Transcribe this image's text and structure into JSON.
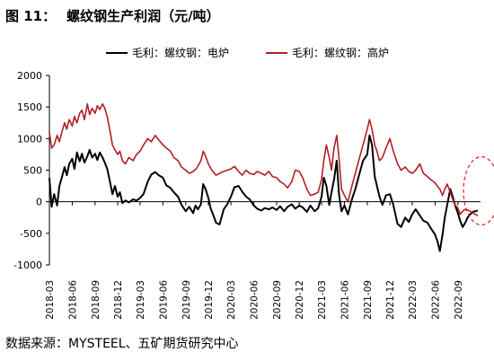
{
  "figure": {
    "number": "图 11：",
    "title": "螺纹钢生产利润（元/吨）",
    "source": "数据来源：MYSTEEL、五矿期货研究中心"
  },
  "chart_data": {
    "type": "line",
    "title": "",
    "xlabel": "",
    "ylabel": "",
    "ylim": [
      -1000,
      2000
    ],
    "yticks": [
      -1000,
      -500,
      0,
      500,
      1000,
      1500,
      2000
    ],
    "xlim": [
      "2018-03",
      "2022-12"
    ],
    "xticks": [
      "2018-03",
      "2018-06",
      "2018-09",
      "2018-12",
      "2019-03",
      "2019-06",
      "2019-09",
      "2019-12",
      "2020-03",
      "2020-06",
      "2020-09",
      "2020-12",
      "2021-03",
      "2021-06",
      "2021-09",
      "2021-12",
      "2022-03",
      "2022-06",
      "2022-09"
    ],
    "legend_position": "top",
    "grid": false,
    "annotation": "red dashed ellipse around latest values",
    "series": [
      {
        "name": "毛利：螺纹钢：电炉",
        "color": "#000000",
        "points": [
          [
            "2018-03-01",
            380
          ],
          [
            "2018-03-10",
            -80
          ],
          [
            "2018-03-20",
            120
          ],
          [
            "2018-04-01",
            -60
          ],
          [
            "2018-04-10",
            250
          ],
          [
            "2018-04-20",
            380
          ],
          [
            "2018-05-01",
            550
          ],
          [
            "2018-05-10",
            420
          ],
          [
            "2018-05-20",
            600
          ],
          [
            "2018-06-01",
            680
          ],
          [
            "2018-06-10",
            520
          ],
          [
            "2018-06-20",
            780
          ],
          [
            "2018-07-01",
            640
          ],
          [
            "2018-07-10",
            760
          ],
          [
            "2018-07-20",
            620
          ],
          [
            "2018-08-01",
            720
          ],
          [
            "2018-08-10",
            820
          ],
          [
            "2018-08-20",
            700
          ],
          [
            "2018-09-01",
            760
          ],
          [
            "2018-09-10",
            660
          ],
          [
            "2018-09-20",
            780
          ],
          [
            "2018-10-01",
            700
          ],
          [
            "2018-10-10",
            620
          ],
          [
            "2018-10-20",
            520
          ],
          [
            "2018-11-01",
            300
          ],
          [
            "2018-11-10",
            120
          ],
          [
            "2018-11-20",
            250
          ],
          [
            "2018-12-01",
            80
          ],
          [
            "2018-12-10",
            150
          ],
          [
            "2018-12-20",
            -20
          ],
          [
            "2019-01-01",
            20
          ],
          [
            "2019-01-15",
            -10
          ],
          [
            "2019-02-01",
            40
          ],
          [
            "2019-02-15",
            20
          ],
          [
            "2019-03-01",
            60
          ],
          [
            "2019-03-15",
            120
          ],
          [
            "2019-04-01",
            320
          ],
          [
            "2019-04-15",
            430
          ],
          [
            "2019-05-01",
            470
          ],
          [
            "2019-05-15",
            420
          ],
          [
            "2019-06-01",
            380
          ],
          [
            "2019-06-15",
            260
          ],
          [
            "2019-07-01",
            220
          ],
          [
            "2019-07-15",
            150
          ],
          [
            "2019-08-01",
            80
          ],
          [
            "2019-08-15",
            -50
          ],
          [
            "2019-09-01",
            -150
          ],
          [
            "2019-09-15",
            -80
          ],
          [
            "2019-10-01",
            -180
          ],
          [
            "2019-10-10",
            -60
          ],
          [
            "2019-10-20",
            -120
          ],
          [
            "2019-11-01",
            -40
          ],
          [
            "2019-11-10",
            280
          ],
          [
            "2019-11-20",
            200
          ],
          [
            "2019-12-01",
            60
          ],
          [
            "2019-12-10",
            -100
          ],
          [
            "2019-12-20",
            -200
          ],
          [
            "2020-01-01",
            -330
          ],
          [
            "2020-01-15",
            -360
          ],
          [
            "2020-02-01",
            -120
          ],
          [
            "2020-02-15",
            -40
          ],
          [
            "2020-03-01",
            80
          ],
          [
            "2020-03-15",
            230
          ],
          [
            "2020-04-01",
            250
          ],
          [
            "2020-04-15",
            160
          ],
          [
            "2020-05-01",
            80
          ],
          [
            "2020-05-15",
            40
          ],
          [
            "2020-06-01",
            -60
          ],
          [
            "2020-06-15",
            -110
          ],
          [
            "2020-07-01",
            -140
          ],
          [
            "2020-07-15",
            -100
          ],
          [
            "2020-08-01",
            -120
          ],
          [
            "2020-08-15",
            -90
          ],
          [
            "2020-09-01",
            -130
          ],
          [
            "2020-09-15",
            -70
          ],
          [
            "2020-10-01",
            -150
          ],
          [
            "2020-10-15",
            -80
          ],
          [
            "2020-11-01",
            -40
          ],
          [
            "2020-11-15",
            -110
          ],
          [
            "2020-12-01",
            -60
          ],
          [
            "2020-12-15",
            -90
          ],
          [
            "2021-01-01",
            -160
          ],
          [
            "2021-01-15",
            -60
          ],
          [
            "2021-02-01",
            -150
          ],
          [
            "2021-02-15",
            -100
          ],
          [
            "2021-03-01",
            80
          ],
          [
            "2021-03-10",
            380
          ],
          [
            "2021-03-20",
            260
          ],
          [
            "2021-04-01",
            -50
          ],
          [
            "2021-04-10",
            150
          ],
          [
            "2021-04-20",
            350
          ],
          [
            "2021-05-01",
            650
          ],
          [
            "2021-05-10",
            120
          ],
          [
            "2021-05-20",
            -150
          ],
          [
            "2021-06-01",
            -60
          ],
          [
            "2021-06-15",
            -200
          ],
          [
            "2021-07-01",
            40
          ],
          [
            "2021-07-15",
            200
          ],
          [
            "2021-08-01",
            450
          ],
          [
            "2021-08-15",
            650
          ],
          [
            "2021-09-01",
            750
          ],
          [
            "2021-09-10",
            1050
          ],
          [
            "2021-09-20",
            900
          ],
          [
            "2021-10-01",
            400
          ],
          [
            "2021-10-10",
            250
          ],
          [
            "2021-10-20",
            80
          ],
          [
            "2021-11-01",
            -50
          ],
          [
            "2021-11-15",
            100
          ],
          [
            "2021-12-01",
            120
          ],
          [
            "2021-12-15",
            -50
          ],
          [
            "2022-01-01",
            -350
          ],
          [
            "2022-01-15",
            -400
          ],
          [
            "2022-02-01",
            -250
          ],
          [
            "2022-02-15",
            -320
          ],
          [
            "2022-03-01",
            -200
          ],
          [
            "2022-03-15",
            -120
          ],
          [
            "2022-04-01",
            -220
          ],
          [
            "2022-04-15",
            -300
          ],
          [
            "2022-05-01",
            -330
          ],
          [
            "2022-05-15",
            -420
          ],
          [
            "2022-06-01",
            -520
          ],
          [
            "2022-06-10",
            -620
          ],
          [
            "2022-06-20",
            -780
          ],
          [
            "2022-07-01",
            -520
          ],
          [
            "2022-07-10",
            -250
          ],
          [
            "2022-07-20",
            -50
          ],
          [
            "2022-08-01",
            200
          ],
          [
            "2022-08-10",
            90
          ],
          [
            "2022-08-20",
            -50
          ],
          [
            "2022-09-01",
            -180
          ],
          [
            "2022-09-10",
            -300
          ],
          [
            "2022-09-20",
            -400
          ],
          [
            "2022-10-01",
            -330
          ],
          [
            "2022-10-10",
            -250
          ],
          [
            "2022-10-20",
            -200
          ],
          [
            "2022-11-01",
            -160
          ],
          [
            "2022-11-10",
            -150
          ],
          [
            "2022-11-20",
            -140
          ]
        ]
      },
      {
        "name": "毛利：螺纹钢：高炉",
        "color": "#b11f24",
        "points": [
          [
            "2018-03-01",
            1100
          ],
          [
            "2018-03-10",
            850
          ],
          [
            "2018-03-20",
            900
          ],
          [
            "2018-04-01",
            1050
          ],
          [
            "2018-04-10",
            950
          ],
          [
            "2018-04-20",
            1100
          ],
          [
            "2018-05-01",
            1250
          ],
          [
            "2018-05-10",
            1150
          ],
          [
            "2018-05-20",
            1300
          ],
          [
            "2018-06-01",
            1200
          ],
          [
            "2018-06-10",
            1350
          ],
          [
            "2018-06-20",
            1250
          ],
          [
            "2018-07-01",
            1400
          ],
          [
            "2018-07-10",
            1450
          ],
          [
            "2018-07-20",
            1300
          ],
          [
            "2018-08-01",
            1550
          ],
          [
            "2018-08-10",
            1380
          ],
          [
            "2018-08-20",
            1480
          ],
          [
            "2018-09-01",
            1400
          ],
          [
            "2018-09-10",
            1520
          ],
          [
            "2018-09-20",
            1460
          ],
          [
            "2018-10-01",
            1550
          ],
          [
            "2018-10-10",
            1480
          ],
          [
            "2018-10-20",
            1350
          ],
          [
            "2018-11-01",
            1100
          ],
          [
            "2018-11-10",
            900
          ],
          [
            "2018-11-20",
            820
          ],
          [
            "2018-12-01",
            750
          ],
          [
            "2018-12-10",
            800
          ],
          [
            "2018-12-20",
            650
          ],
          [
            "2019-01-01",
            600
          ],
          [
            "2019-01-15",
            700
          ],
          [
            "2019-02-01",
            650
          ],
          [
            "2019-02-15",
            750
          ],
          [
            "2019-03-01",
            800
          ],
          [
            "2019-03-15",
            900
          ],
          [
            "2019-04-01",
            1000
          ],
          [
            "2019-04-15",
            950
          ],
          [
            "2019-05-01",
            1050
          ],
          [
            "2019-05-15",
            980
          ],
          [
            "2019-06-01",
            900
          ],
          [
            "2019-06-15",
            850
          ],
          [
            "2019-07-01",
            800
          ],
          [
            "2019-07-15",
            700
          ],
          [
            "2019-08-01",
            650
          ],
          [
            "2019-08-15",
            550
          ],
          [
            "2019-09-01",
            500
          ],
          [
            "2019-09-15",
            450
          ],
          [
            "2019-10-01",
            480
          ],
          [
            "2019-10-15",
            530
          ],
          [
            "2019-11-01",
            650
          ],
          [
            "2019-11-10",
            800
          ],
          [
            "2019-11-20",
            720
          ],
          [
            "2019-12-01",
            600
          ],
          [
            "2019-12-15",
            500
          ],
          [
            "2020-01-01",
            420
          ],
          [
            "2020-01-15",
            450
          ],
          [
            "2020-02-01",
            480
          ],
          [
            "2020-02-15",
            500
          ],
          [
            "2020-03-01",
            520
          ],
          [
            "2020-03-15",
            560
          ],
          [
            "2020-04-01",
            480
          ],
          [
            "2020-04-15",
            420
          ],
          [
            "2020-05-01",
            500
          ],
          [
            "2020-05-15",
            450
          ],
          [
            "2020-06-01",
            430
          ],
          [
            "2020-06-15",
            480
          ],
          [
            "2020-07-01",
            450
          ],
          [
            "2020-07-15",
            420
          ],
          [
            "2020-08-01",
            480
          ],
          [
            "2020-08-15",
            400
          ],
          [
            "2020-09-01",
            380
          ],
          [
            "2020-09-15",
            320
          ],
          [
            "2020-10-01",
            280
          ],
          [
            "2020-10-15",
            220
          ],
          [
            "2020-11-01",
            320
          ],
          [
            "2020-11-15",
            500
          ],
          [
            "2020-12-01",
            480
          ],
          [
            "2020-12-15",
            380
          ],
          [
            "2021-01-01",
            200
          ],
          [
            "2021-01-15",
            100
          ],
          [
            "2021-02-01",
            120
          ],
          [
            "2021-02-15",
            150
          ],
          [
            "2021-03-01",
            350
          ],
          [
            "2021-03-10",
            650
          ],
          [
            "2021-03-20",
            900
          ],
          [
            "2021-04-01",
            700
          ],
          [
            "2021-04-10",
            500
          ],
          [
            "2021-04-20",
            850
          ],
          [
            "2021-05-01",
            1050
          ],
          [
            "2021-05-10",
            700
          ],
          [
            "2021-05-20",
            200
          ],
          [
            "2021-06-01",
            100
          ],
          [
            "2021-06-15",
            0
          ],
          [
            "2021-07-01",
            250
          ],
          [
            "2021-07-15",
            450
          ],
          [
            "2021-08-01",
            700
          ],
          [
            "2021-08-15",
            900
          ],
          [
            "2021-09-01",
            1150
          ],
          [
            "2021-09-10",
            1300
          ],
          [
            "2021-09-20",
            1150
          ],
          [
            "2021-10-01",
            900
          ],
          [
            "2021-10-10",
            800
          ],
          [
            "2021-10-20",
            650
          ],
          [
            "2021-11-01",
            700
          ],
          [
            "2021-11-15",
            850
          ],
          [
            "2021-12-01",
            1000
          ],
          [
            "2021-12-15",
            800
          ],
          [
            "2022-01-01",
            600
          ],
          [
            "2022-01-15",
            500
          ],
          [
            "2022-02-01",
            550
          ],
          [
            "2022-02-15",
            480
          ],
          [
            "2022-03-01",
            450
          ],
          [
            "2022-03-15",
            500
          ],
          [
            "2022-04-01",
            600
          ],
          [
            "2022-04-15",
            450
          ],
          [
            "2022-05-01",
            400
          ],
          [
            "2022-05-15",
            350
          ],
          [
            "2022-06-01",
            300
          ],
          [
            "2022-06-10",
            250
          ],
          [
            "2022-06-20",
            200
          ],
          [
            "2022-07-01",
            100
          ],
          [
            "2022-07-10",
            200
          ],
          [
            "2022-07-20",
            280
          ],
          [
            "2022-08-01",
            150
          ],
          [
            "2022-08-10",
            50
          ],
          [
            "2022-08-20",
            -50
          ],
          [
            "2022-09-01",
            -100
          ],
          [
            "2022-09-10",
            -200
          ],
          [
            "2022-09-20",
            -150
          ],
          [
            "2022-10-01",
            -120
          ],
          [
            "2022-10-10",
            -130
          ],
          [
            "2022-10-20",
            -150
          ],
          [
            "2022-11-01",
            -180
          ],
          [
            "2022-11-10",
            -200
          ],
          [
            "2022-11-20",
            -220
          ]
        ]
      }
    ]
  }
}
